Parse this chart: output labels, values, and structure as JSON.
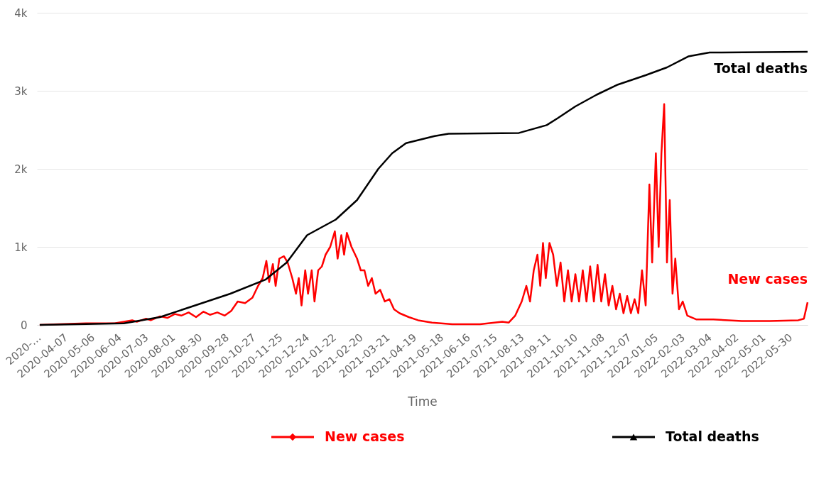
{
  "chart_data": {
    "type": "line",
    "xlabel": "Time",
    "grid": "y",
    "legend": "bottom",
    "marker": "none",
    "line_style": "solid",
    "xlim": [
      "2020-03-09",
      "2022-06-20"
    ],
    "xticks": [
      {
        "value": "2020-03-09",
        "label": "2020-…"
      },
      "2020-04-07",
      "2020-05-06",
      "2020-06-04",
      "2020-07-03",
      "2020-08-01",
      "2020-08-30",
      "2020-09-28",
      "2020-10-27",
      "2020-11-25",
      "2020-12-24",
      "2021-01-22",
      "2021-02-20",
      "2021-03-21",
      "2021-04-19",
      "2021-05-18",
      "2021-06-16",
      "2021-07-15",
      "2021-08-13",
      "2021-09-11",
      "2021-10-10",
      "2021-11-08",
      "2021-12-07",
      "2022-01-05",
      "2022-02-03",
      "2022-03-04",
      "2022-04-02",
      "2022-05-01",
      "2022-05-30"
    ],
    "ylim": [
      0,
      4000
    ],
    "yticks": [
      0,
      {
        "value": 1000,
        "label": "1k"
      },
      {
        "value": 2000,
        "label": "2k"
      },
      {
        "value": 3000,
        "label": "3k"
      },
      {
        "value": 4000,
        "label": "4k"
      }
    ],
    "series": [
      {
        "name": "New cases",
        "color": "#ff0000",
        "x": [
          "2020-03-12",
          "2020-04-01",
          "2020-05-01",
          "2020-06-01",
          "2020-06-20",
          "2020-06-25",
          "2020-07-05",
          "2020-07-10",
          "2020-07-20",
          "2020-07-28",
          "2020-08-05",
          "2020-08-12",
          "2020-08-20",
          "2020-08-28",
          "2020-09-05",
          "2020-09-12",
          "2020-09-20",
          "2020-09-28",
          "2020-10-05",
          "2020-10-12",
          "2020-10-20",
          "2020-10-28",
          "2020-11-03",
          "2020-11-08",
          "2020-11-12",
          "2020-11-15",
          "2020-11-19",
          "2020-11-22",
          "2020-11-26",
          "2020-12-01",
          "2020-12-05",
          "2020-12-10",
          "2020-12-14",
          "2020-12-17",
          "2020-12-20",
          "2020-12-24",
          "2020-12-27",
          "2020-12-31",
          "2021-01-03",
          "2021-01-07",
          "2021-01-11",
          "2021-01-15",
          "2021-01-20",
          "2021-01-25",
          "2021-01-28",
          "2021-02-01",
          "2021-02-04",
          "2021-02-07",
          "2021-02-12",
          "2021-02-18",
          "2021-02-22",
          "2021-02-26",
          "2021-03-02",
          "2021-03-06",
          "2021-03-10",
          "2021-03-15",
          "2021-03-20",
          "2021-03-25",
          "2021-03-30",
          "2021-04-05",
          "2021-04-15",
          "2021-04-25",
          "2021-05-10",
          "2021-06-01",
          "2021-07-01",
          "2021-07-25",
          "2021-08-01",
          "2021-08-08",
          "2021-08-15",
          "2021-08-20",
          "2021-08-24",
          "2021-08-28",
          "2021-09-01",
          "2021-09-04",
          "2021-09-07",
          "2021-09-10",
          "2021-09-14",
          "2021-09-18",
          "2021-09-22",
          "2021-09-26",
          "2021-09-30",
          "2021-10-04",
          "2021-10-08",
          "2021-10-12",
          "2021-10-16",
          "2021-10-20",
          "2021-10-24",
          "2021-10-28",
          "2021-11-01",
          "2021-11-05",
          "2021-11-09",
          "2021-11-13",
          "2021-11-17",
          "2021-11-21",
          "2021-11-25",
          "2021-11-29",
          "2021-12-03",
          "2021-12-07",
          "2021-12-11",
          "2021-12-15",
          "2021-12-19",
          "2021-12-23",
          "2021-12-27",
          "2021-12-31",
          "2022-01-03",
          "2022-01-07",
          "2022-01-10",
          "2022-01-13",
          "2022-01-16",
          "2022-01-19",
          "2022-01-22",
          "2022-01-25",
          "2022-01-28",
          "2022-02-01",
          "2022-02-05",
          "2022-02-10",
          "2022-02-20",
          "2022-03-10",
          "2022-04-10",
          "2022-05-10",
          "2022-06-10",
          "2022-06-16",
          "2022-06-20"
        ],
        "values": [
          0,
          10,
          20,
          20,
          60,
          40,
          80,
          60,
          110,
          90,
          140,
          120,
          160,
          100,
          170,
          130,
          160,
          120,
          180,
          300,
          280,
          350,
          500,
          600,
          820,
          550,
          780,
          500,
          850,
          880,
          800,
          600,
          400,
          600,
          250,
          700,
          400,
          700,
          300,
          700,
          750,
          900,
          1000,
          1200,
          850,
          1150,
          900,
          1180,
          1000,
          850,
          700,
          700,
          500,
          600,
          400,
          450,
          300,
          330,
          200,
          150,
          100,
          60,
          30,
          10,
          10,
          40,
          30,
          120,
          300,
          500,
          300,
          700,
          900,
          500,
          1050,
          600,
          1050,
          900,
          500,
          800,
          300,
          700,
          300,
          650,
          300,
          700,
          300,
          750,
          300,
          770,
          300,
          650,
          250,
          500,
          200,
          400,
          150,
          370,
          150,
          330,
          150,
          700,
          250,
          1800,
          800,
          2200,
          1000,
          2200,
          2830,
          800,
          1600,
          400,
          850,
          200,
          300,
          120,
          70,
          70,
          50,
          50,
          60,
          80,
          290
        ]
      },
      {
        "name": "Total deaths",
        "color": "#000000",
        "x": [
          "2020-03-12",
          "2020-06-11",
          "2020-07-20",
          "2020-08-27",
          "2020-10-04",
          "2020-11-11",
          "2020-12-04",
          "2020-12-26",
          "2021-01-26",
          "2021-02-18",
          "2021-03-13",
          "2021-03-28",
          "2021-04-12",
          "2021-05-13",
          "2021-05-28",
          "2021-08-12",
          "2021-09-11",
          "2021-09-23",
          "2021-10-12",
          "2021-11-04",
          "2021-11-27",
          "2021-12-27",
          "2022-01-19",
          "2022-02-11",
          "2022-03-06",
          "2022-06-20"
        ],
        "values": [
          0,
          20,
          100,
          250,
          400,
          580,
          800,
          1150,
          1350,
          1600,
          2000,
          2200,
          2330,
          2420,
          2450,
          2460,
          2560,
          2650,
          2800,
          2950,
          3080,
          3200,
          3300,
          3440,
          3490,
          3500
        ]
      }
    ]
  }
}
